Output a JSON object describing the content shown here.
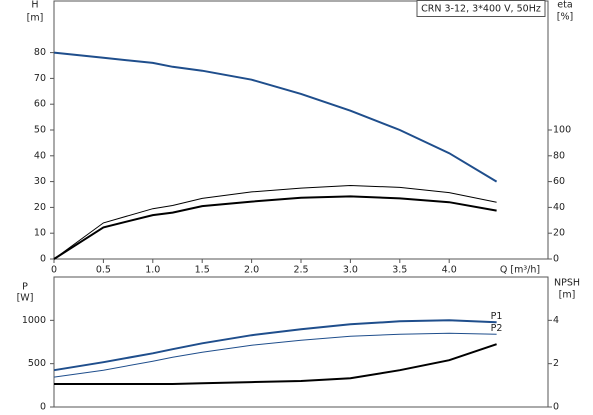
{
  "chart_data": [
    {
      "type": "line",
      "annotation": "CRN 3-12, 3*400 V, 50Hz",
      "ylabel": [
        "H",
        "[m]"
      ],
      "y2label": [
        "eta",
        "[%]"
      ],
      "xlabel": "Q [m³/h]",
      "x": [
        0,
        0.5,
        1,
        1.2,
        1.5,
        2,
        2.5,
        3,
        3.5,
        4,
        4.48
      ],
      "xlim": [
        0,
        5
      ],
      "xticks": [
        0,
        0.5,
        {
          "value": 1,
          "label": "1.0"
        },
        1.5,
        {
          "value": 2,
          "label": "2.0"
        },
        2.5,
        {
          "value": 3,
          "label": "3.0"
        },
        3.5,
        {
          "value": 4,
          "label": "4.0"
        }
      ],
      "ylim": [
        0,
        100
      ],
      "yticks": [
        0,
        10,
        20,
        30,
        40,
        50,
        60,
        70,
        80
      ],
      "y2lim": [
        0,
        200
      ],
      "y2ticks": [
        0,
        20,
        40,
        60,
        80,
        100
      ],
      "series": [
        {
          "color": "#1f4e8c",
          "width": 2,
          "values": [
            80,
            78,
            76,
            74.5,
            73,
            69.5,
            64,
            57.5,
            50,
            41,
            30
          ]
        },
        {
          "color": "#000000",
          "width": 1,
          "axis": "y2",
          "values": [
            0,
            28,
            39,
            41.5,
            47,
            52,
            55,
            57,
            55.5,
            51.5,
            44
          ]
        },
        {
          "color": "#000000",
          "width": 2,
          "axis": "y2",
          "values": [
            0,
            24.5,
            34,
            36,
            41,
            44.5,
            47.5,
            48.5,
            47,
            44,
            37.5
          ]
        }
      ]
    },
    {
      "type": "line",
      "ylabel": [
        "P",
        "[W]"
      ],
      "y2label": [
        "NPSH",
        "[m]"
      ],
      "x": [
        0,
        0.5,
        1,
        1.2,
        1.5,
        2,
        2.5,
        3,
        3.5,
        4,
        4.48
      ],
      "xlim": [
        0,
        5
      ],
      "ylim": [
        0,
        1500
      ],
      "yticks": [
        0,
        500,
        1000
      ],
      "y2lim": [
        0,
        6
      ],
      "y2ticks": [
        0,
        2,
        4
      ],
      "series": [
        {
          "name": "P1",
          "color": "#1f4e8c",
          "width": 2,
          "values": [
            425,
            517,
            620,
            667,
            735,
            828,
            897,
            954,
            989,
            1000,
            977
          ]
        },
        {
          "name": "P2",
          "color": "#1f4e8c",
          "width": 1,
          "values": [
            345,
            425,
            529,
            575,
            632,
            713,
            770,
            816,
            839,
            851,
            839
          ]
        },
        {
          "color": "#000000",
          "width": 2,
          "axis": "y2",
          "values": [
            1.06,
            1.06,
            1.06,
            1.06,
            1.1,
            1.15,
            1.2,
            1.33,
            1.7,
            2.16,
            2.9
          ]
        }
      ]
    }
  ]
}
